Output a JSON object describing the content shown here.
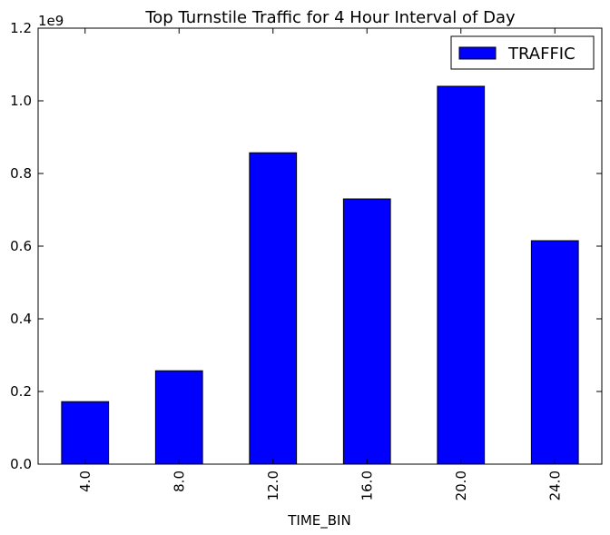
{
  "chart_data": {
    "type": "bar",
    "title": "Top Turnstile Traffic for 4 Hour Interval of Day",
    "xlabel": "TIME_BIN",
    "ylabel": "",
    "y_offset_label": "1e9",
    "categories": [
      "4.0",
      "8.0",
      "12.0",
      "16.0",
      "20.0",
      "24.0"
    ],
    "series": [
      {
        "name": "TRAFFIC",
        "color": "#0000ff",
        "values": [
          172000000,
          257000000,
          857000000,
          730000000,
          1040000000,
          615000000
        ]
      }
    ],
    "ylim": [
      0,
      1200000000
    ],
    "y_ticks": [
      0,
      200000000,
      400000000,
      600000000,
      800000000,
      1000000000,
      1200000000
    ],
    "y_tick_labels": [
      "0.0",
      "0.2",
      "0.4",
      "0.6",
      "0.8",
      "1.0",
      "1.2"
    ],
    "grid": false,
    "legend_position": "top-right",
    "x_tick_rotation": "vertical"
  }
}
